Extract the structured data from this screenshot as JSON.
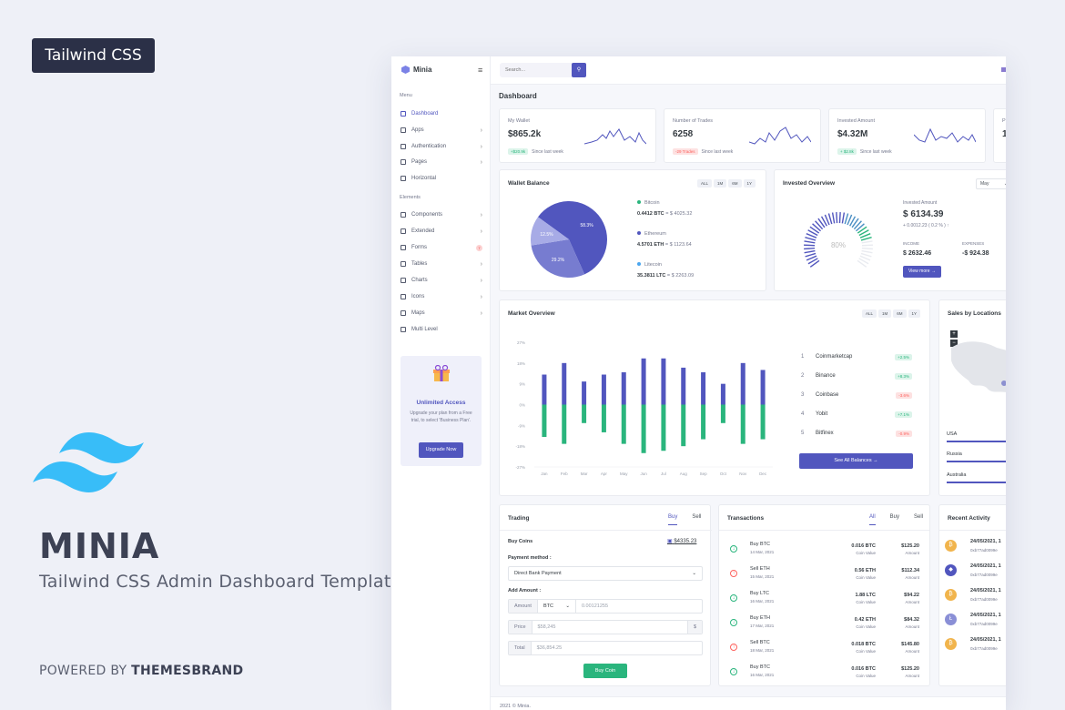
{
  "promo_badge": "Tailwind CSS",
  "brand": {
    "name": "MINIA",
    "subtitle": "Tailwind CSS Admin Dashboard Template",
    "powered_prefix": "POWERED BY ",
    "powered_brand": "THEMESBRAND"
  },
  "app": {
    "name": "Minia",
    "search_placeholder": "Search...",
    "page_title": "Dashboard",
    "sidebar": {
      "menu_label": "Menu",
      "elements_label": "Elements",
      "items": [
        {
          "label": "Dashboard"
        },
        {
          "label": "Apps"
        },
        {
          "label": "Authentication"
        },
        {
          "label": "Pages"
        },
        {
          "label": "Horizontal"
        }
      ],
      "elements": [
        {
          "label": "Components"
        },
        {
          "label": "Extended"
        },
        {
          "label": "Forms",
          "badge": "7"
        },
        {
          "label": "Tables"
        },
        {
          "label": "Charts"
        },
        {
          "label": "Icons"
        },
        {
          "label": "Maps"
        },
        {
          "label": "Multi Level"
        }
      ],
      "promo": {
        "title": "Unlimited Access",
        "text": "Upgrade your plan from a Free trial, to select 'Business Plan'.",
        "button": "Upgrade Now"
      }
    },
    "stats": [
      {
        "label": "My Wallet",
        "value": "$865.2k",
        "badge": "+$20.9k",
        "note": "Since last week",
        "badge_type": "g"
      },
      {
        "label": "Number of Trades",
        "value": "6258",
        "badge": "-29 Trades",
        "note": "Since last week",
        "badge_type": "r"
      },
      {
        "label": "Invested Amount",
        "value": "$4.32M",
        "badge": "+ $2.8k",
        "note": "Since last week",
        "badge_type": "g"
      },
      {
        "label": "P",
        "value": "1"
      }
    ],
    "wallet": {
      "title": "Wallet Balance",
      "filters": [
        "ALL",
        "1M",
        "6M",
        "1Y"
      ],
      "coins": [
        {
          "name": "Bitcoin",
          "amount": "0.4412 BTC",
          "usd": "= $ 4025.32",
          "color": "#2ab57d"
        },
        {
          "name": "Ethereum",
          "amount": "4.5701 ETH",
          "usd": "= $ 1123.64",
          "color": "#5156be"
        },
        {
          "name": "Litecoin",
          "amount": "35.3811 LTC",
          "usd": "= $ 2263.09",
          "color": "#4ba6ef"
        }
      ],
      "pie": [
        {
          "label": "58.3%",
          "value": 58.3,
          "color": "#5156be"
        },
        {
          "label": "29.2%",
          "value": 29.2,
          "color": "#777cd0"
        },
        {
          "label": "12.5%",
          "value": 12.5,
          "color": "#a7abe6"
        }
      ]
    },
    "invested": {
      "title": "Invested Overview",
      "month": "May",
      "gauge_label": "80%",
      "gauge_value": 80,
      "amount_label": "Invested Amount",
      "amount": "$ 6134.39",
      "change": "+ 0.0012.23 ( 0.2 % )",
      "income_label": "INCOME",
      "income": "$ 2632.46",
      "expenses_label": "EXPENSES",
      "expenses": "-$ 924.38",
      "button": "View more"
    },
    "market": {
      "title": "Market Overview",
      "filters": [
        "ALL",
        "1M",
        "6M",
        "1Y"
      ],
      "ranks": [
        {
          "n": "1",
          "name": "Coinmarketcap",
          "pct": "+2.5%",
          "t": "g"
        },
        {
          "n": "2",
          "name": "Binance",
          "pct": "+8.3%",
          "t": "g"
        },
        {
          "n": "3",
          "name": "Coinbase",
          "pct": "-3.6%",
          "t": "r"
        },
        {
          "n": "4",
          "name": "Yobit",
          "pct": "+7.1%",
          "t": "g"
        },
        {
          "n": "5",
          "name": "Bitfinex",
          "pct": "-0.9%",
          "t": "r"
        }
      ],
      "button": "See All Balances"
    },
    "sales": {
      "title": "Sales by Locations",
      "locations": [
        "USA",
        "Russia",
        "Australia"
      ]
    },
    "trading": {
      "title": "Trading",
      "tabs": [
        "Buy",
        "Sell"
      ],
      "buy_coins": "Buy Coins",
      "balance": "$4335.23",
      "payment_label": "Payment method :",
      "payment_value": "Direct Bank Payment",
      "add_amount": "Add Amount :",
      "amount_pre": "Amount",
      "coin": "BTC",
      "amount_ph": "0.00121255",
      "price_pre": "Price",
      "price_ph": "$58,245",
      "price_suffix": "$",
      "total_pre": "Total",
      "total_ph": "$36,854.25",
      "button": "Buy Coin"
    },
    "transactions": {
      "title": "Transactions",
      "tabs": [
        "All",
        "Buy",
        "Sell"
      ],
      "rows": [
        {
          "t": "Buy BTC",
          "d": "14 Mar, 2021",
          "coin": "0.016 BTC",
          "cl": "Coin Value",
          "amt": "$125.20",
          "al": "Amount",
          "type": "buy"
        },
        {
          "t": "Sell ETH",
          "d": "15 Mar, 2021",
          "coin": "0.56 ETH",
          "cl": "Coin Value",
          "amt": "$112.34",
          "al": "Amount",
          "type": "sell"
        },
        {
          "t": "Buy LTC",
          "d": "16 Mar, 2021",
          "coin": "1.88 LTC",
          "cl": "Coin Value",
          "amt": "$94.22",
          "al": "Amount",
          "type": "buy"
        },
        {
          "t": "Buy ETH",
          "d": "17 Mar, 2021",
          "coin": "0.42 ETH",
          "cl": "Coin Value",
          "amt": "$84.32",
          "al": "Amount",
          "type": "buy"
        },
        {
          "t": "Sell BTC",
          "d": "18 Mar, 2021",
          "coin": "0.018 BTC",
          "cl": "Coin Value",
          "amt": "$145.80",
          "al": "Amount",
          "type": "sell"
        },
        {
          "t": "Buy BTC",
          "d": "16 Mar, 2021",
          "coin": "0.016 BTC",
          "cl": "Coin Value",
          "amt": "$125.20",
          "al": "Amount",
          "type": "buy"
        }
      ]
    },
    "activity": {
      "title": "Recent Activity",
      "rows": [
        {
          "d": "24/05/2021, 1",
          "h": "0xb77ad0099e",
          "color": "#f1b44c",
          "s": "₿"
        },
        {
          "d": "24/05/2021, 1",
          "h": "0xb77ad0099e",
          "color": "#5156be",
          "s": "◆"
        },
        {
          "d": "24/05/2021, 1",
          "h": "0xb77ad0099e",
          "color": "#f1b44c",
          "s": "₿"
        },
        {
          "d": "24/05/2021, 1",
          "h": "0xb77ad0099e",
          "color": "#8a8fd6",
          "s": "Ł"
        },
        {
          "d": "24/05/2021, 1",
          "h": "0xb77ad0099e",
          "color": "#f1b44c",
          "s": "₿"
        }
      ]
    },
    "footer": "2021 © Minia."
  },
  "chart_data": {
    "type": "bar",
    "categories": [
      "Jan",
      "Feb",
      "Mar",
      "Apr",
      "May",
      "Jun",
      "Jul",
      "Aug",
      "Sep",
      "Oct",
      "Nov",
      "Dec"
    ],
    "series": [
      {
        "values": [
          13,
          18,
          10,
          13,
          14,
          20,
          20,
          16,
          14,
          9,
          18,
          15
        ],
        "color": "#5156be"
      },
      {
        "values": [
          -14,
          -17,
          -8,
          -12,
          -17,
          -21,
          -20,
          -18,
          -15,
          -8,
          -17,
          -15
        ],
        "color": "#2ab57d"
      }
    ],
    "yticks": [
      "27%",
      "18%",
      "9%",
      "0%",
      "-9%",
      "-18%",
      "-27%"
    ],
    "ylim": [
      -27,
      27
    ]
  }
}
